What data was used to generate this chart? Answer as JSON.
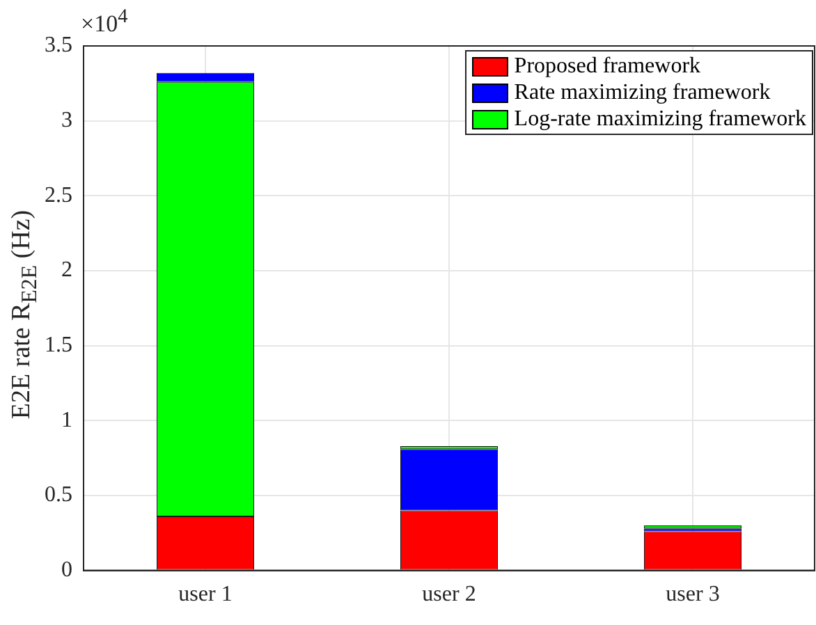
{
  "chart_data": {
    "type": "bar",
    "ylabel": "E2E rate R$_{E2E}$ (Hz)",
    "annotations": [
      "×10$^{4}$"
    ],
    "categories": [
      "user 1",
      "user 2",
      "user 3"
    ],
    "series": [
      {
        "name": "Proposed framework",
        "color": "#ff0000",
        "base": [
          0,
          0,
          0
        ],
        "values": [
          0.36,
          0.4,
          0.26
        ]
      },
      {
        "name": "Rate maximizing framework",
        "color": "#0000ff",
        "base": [
          3.26,
          0.4,
          0.26
        ],
        "values": [
          0.06,
          0.41,
          0.02
        ]
      },
      {
        "name": "Log-rate maximizing framework",
        "color": "#00ff00",
        "base": [
          0.36,
          0.81,
          0.28
        ],
        "values": [
          2.9,
          0.02,
          0.02
        ]
      }
    ],
    "ylim": [
      0,
      3.5
    ],
    "yticks": [
      0,
      0.5,
      1,
      1.5,
      2,
      2.5,
      3,
      3.5
    ],
    "grid": true,
    "legend": "top right"
  }
}
